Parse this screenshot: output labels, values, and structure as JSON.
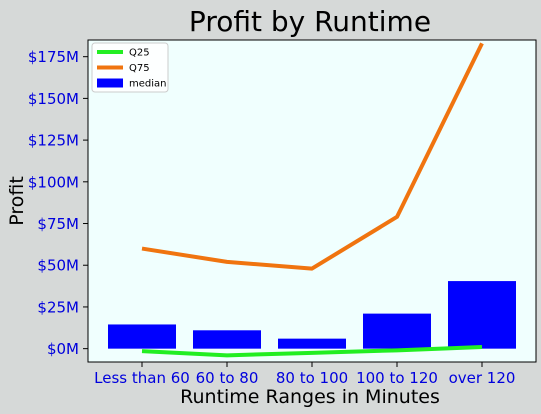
{
  "chart_data": {
    "type": "bar",
    "title": "Profit by Runtime",
    "xlabel": "Runtime Ranges in Minutes",
    "ylabel": "Profit",
    "categories": [
      "Less than 60",
      "60 to 80",
      "80 to 100",
      "100 to 120",
      "over 120"
    ],
    "ylim": [
      -8,
      185
    ],
    "yticks": [
      0,
      25,
      50,
      75,
      100,
      125,
      150,
      175
    ],
    "ytick_labels": [
      "$0M",
      "$25M",
      "$50M",
      "$75M",
      "$100M",
      "$125M",
      "$150M",
      "$175M"
    ],
    "series": [
      {
        "name": "Q25",
        "kind": "line",
        "color": "#22ee22",
        "values": [
          -1.5,
          -4,
          -2.5,
          -1,
          1
        ]
      },
      {
        "name": "Q75",
        "kind": "line",
        "color": "#f0740f",
        "values": [
          60,
          52,
          48,
          79,
          183
        ]
      },
      {
        "name": "median",
        "kind": "bar",
        "color": "#0000ff",
        "values": [
          14.5,
          11,
          6,
          21,
          40.5
        ]
      }
    ],
    "legend_placement": "top-left",
    "grid": false,
    "plot_background": "#f0fffe",
    "tick_label_color": "#0000dd"
  }
}
